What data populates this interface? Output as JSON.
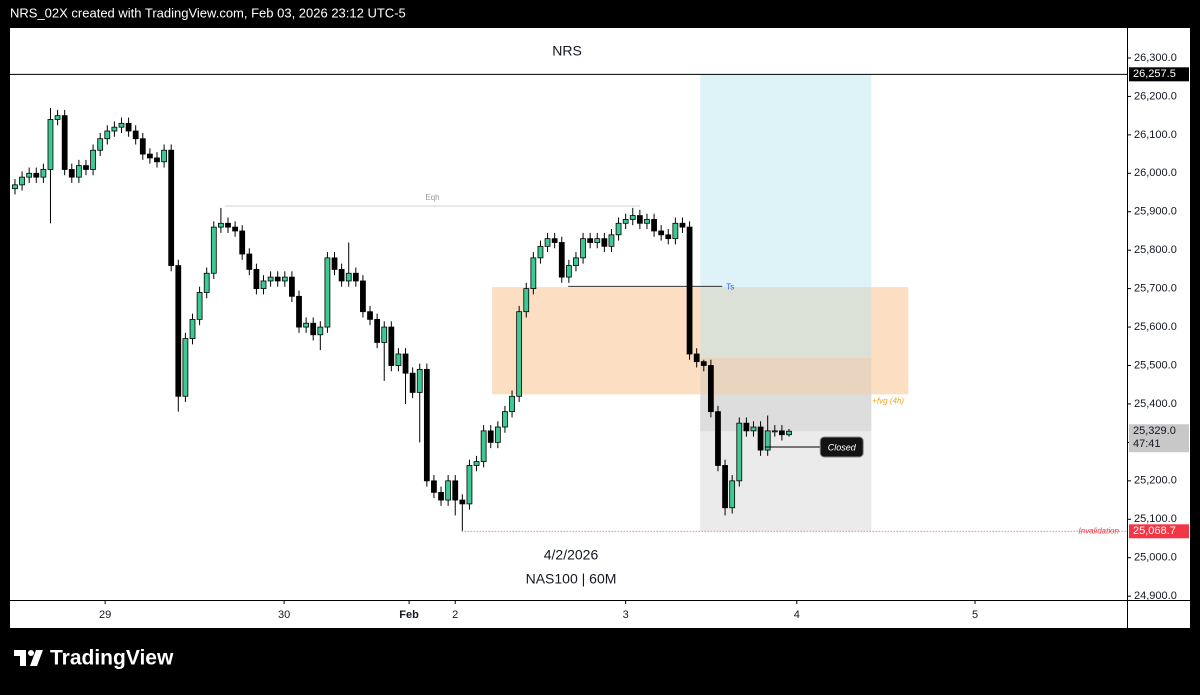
{
  "header": "NRS_02X created with TradingView.com, Feb 03, 2026 23:12 UTC-5",
  "footer": {
    "brand": "TradingView"
  },
  "chart_data": {
    "type": "candlestick",
    "title": "NRS",
    "subtitle": [
      "4/2/2026",
      "NAS100 | 60M"
    ],
    "up_color": "#3dc994",
    "down_color": "#000000",
    "grid": false,
    "xlim": [
      -0.7,
      156.6
    ],
    "ylim": [
      24890,
      26378
    ],
    "xticks": [
      {
        "value": 12.7,
        "label": "29"
      },
      {
        "value": 37.9,
        "label": "30"
      },
      {
        "value": 55.5,
        "label": "Feb"
      },
      {
        "value": 62,
        "label": "2"
      },
      {
        "value": 86,
        "label": "3"
      },
      {
        "value": 110.1,
        "label": "4"
      },
      {
        "value": 135.2,
        "label": "5"
      }
    ],
    "yticks": [
      {
        "value": 24900,
        "label": "24,900.0"
      },
      {
        "value": 25000,
        "label": "25,000.0"
      },
      {
        "value": 25100,
        "label": "25,100.0"
      },
      {
        "value": 25200,
        "label": "25,200.0"
      },
      {
        "value": 25300,
        "label": "25,300.0"
      },
      {
        "value": 25400,
        "label": "25,400.0"
      },
      {
        "value": 25500,
        "label": "25,500.0"
      },
      {
        "value": 25600,
        "label": "25,600.0"
      },
      {
        "value": 25700,
        "label": "25,700.0"
      },
      {
        "value": 25800,
        "label": "25,800.0"
      },
      {
        "value": 25900,
        "label": "25,900.0"
      },
      {
        "value": 26000,
        "label": "26,000.0"
      },
      {
        "value": 26100,
        "label": "26,100.0"
      },
      {
        "value": 26200,
        "label": "26,200.0"
      },
      {
        "value": 26300,
        "label": "26,300.0"
      }
    ],
    "open": [
      25960,
      25970,
      25990,
      26000,
      25990,
      26010,
      26140,
      26150,
      26010,
      25990,
      26020,
      26010,
      26060,
      26090,
      26110,
      26120,
      26130,
      26110,
      26090,
      26050,
      26040,
      26030,
      26060,
      25760,
      25420,
      25570,
      25620,
      25690,
      25740,
      25860,
      25870,
      25860,
      25850,
      25790,
      25750,
      25700,
      25720,
      25730,
      25720,
      25730,
      25680,
      25600,
      25610,
      25580,
      25600,
      25780,
      25750,
      25720,
      25740,
      25720,
      25640,
      25620,
      25560,
      25600,
      25500,
      25530,
      25480,
      25430,
      25490,
      25200,
      25170,
      25150,
      25200,
      25150,
      25140,
      25240,
      25250,
      25330,
      25300,
      25340,
      25380,
      25420,
      25640,
      25700,
      25780,
      25810,
      25830,
      25820,
      25730,
      25760,
      25780,
      25830,
      25820,
      25830,
      25810,
      25840,
      25870,
      25880,
      25890,
      25870,
      25880,
      25850,
      25840,
      25830,
      25870,
      25860,
      25530,
      25510,
      25500,
      25380,
      25240,
      25130,
      25200,
      25350,
      25330,
      25340,
      25280,
      25330,
      25330,
      25320
    ],
    "high": [
      25985,
      26005,
      26015,
      26015,
      26025,
      26170,
      26165,
      26165,
      26025,
      26035,
      26035,
      26075,
      26105,
      26125,
      26135,
      26145,
      26145,
      26125,
      26105,
      26065,
      26055,
      26075,
      26075,
      25775,
      25585,
      25635,
      25705,
      25755,
      25875,
      25910,
      25885,
      25875,
      25865,
      25805,
      25765,
      25735,
      25745,
      25745,
      25745,
      25745,
      25695,
      25625,
      25625,
      25615,
      25795,
      25795,
      25765,
      25820,
      25755,
      25735,
      25655,
      25635,
      25615,
      25615,
      25545,
      25545,
      25495,
      25505,
      25505,
      25215,
      25185,
      25215,
      25215,
      25165,
      25255,
      25265,
      25345,
      25345,
      25355,
      25395,
      25435,
      25655,
      25715,
      25795,
      25825,
      25845,
      25845,
      25835,
      25775,
      25795,
      25845,
      25845,
      25845,
      25845,
      25855,
      25885,
      25895,
      25910,
      25905,
      25895,
      25895,
      25865,
      25855,
      25885,
      25885,
      25875,
      25545,
      25515,
      25515,
      25395,
      25255,
      25215,
      25365,
      25365,
      25355,
      25355,
      25370,
      25345,
      25345,
      25335
    ],
    "low": [
      25945,
      25955,
      25975,
      25975,
      25975,
      25870,
      26125,
      25995,
      25975,
      25975,
      25995,
      25995,
      26045,
      26075,
      26095,
      26105,
      26095,
      26075,
      26035,
      26025,
      26015,
      26015,
      25745,
      25380,
      25405,
      25555,
      25605,
      25675,
      25725,
      25845,
      25845,
      25835,
      25775,
      25735,
      25685,
      25685,
      25705,
      25705,
      25705,
      25665,
      25585,
      25585,
      25565,
      25540,
      25585,
      25735,
      25705,
      25705,
      25705,
      25625,
      25605,
      25545,
      25460,
      25485,
      25485,
      25400,
      25415,
      25300,
      25185,
      25155,
      25135,
      25135,
      25110,
      25070,
      25125,
      25225,
      25235,
      25285,
      25285,
      25325,
      25365,
      25405,
      25625,
      25685,
      25765,
      25795,
      25805,
      25715,
      25715,
      25745,
      25765,
      25805,
      25805,
      25795,
      25795,
      25825,
      25855,
      25865,
      25855,
      25855,
      25835,
      25825,
      25815,
      25815,
      25845,
      25515,
      25495,
      25485,
      25365,
      25225,
      25110,
      25115,
      25185,
      25315,
      25315,
      25265,
      25265,
      25315,
      25305,
      25315
    ],
    "close": [
      25970,
      25990,
      26000,
      25990,
      26010,
      26140,
      26150,
      26010,
      25990,
      26020,
      26010,
      26060,
      26090,
      26110,
      26120,
      26130,
      26110,
      26090,
      26050,
      26040,
      26030,
      26060,
      25760,
      25420,
      25570,
      25620,
      25690,
      25740,
      25860,
      25870,
      25860,
      25850,
      25790,
      25750,
      25700,
      25720,
      25730,
      25720,
      25730,
      25680,
      25600,
      25610,
      25580,
      25600,
      25780,
      25750,
      25720,
      25740,
      25720,
      25640,
      25620,
      25560,
      25600,
      25500,
      25530,
      25480,
      25430,
      25490,
      25200,
      25170,
      25150,
      25200,
      25150,
      25140,
      25240,
      25250,
      25330,
      25300,
      25340,
      25380,
      25420,
      25640,
      25700,
      25780,
      25810,
      25830,
      25820,
      25730,
      25760,
      25780,
      25830,
      25820,
      25830,
      25810,
      25840,
      25870,
      25880,
      25890,
      25870,
      25880,
      25850,
      25840,
      25830,
      25870,
      25860,
      25530,
      25510,
      25500,
      25380,
      25240,
      25130,
      25200,
      25350,
      25330,
      25340,
      25280,
      25330,
      25330,
      25320,
      25329
    ],
    "price_labels": [
      {
        "value": 26257.5,
        "label": "26,257.5",
        "color": "#000000"
      },
      {
        "value": 25329,
        "label": "25,329.0",
        "countdown": "47:41",
        "color": "#c8c8c8"
      },
      {
        "value": 25068.7,
        "label": "25,068.7",
        "color": "#f23645"
      }
    ],
    "position": {
      "x": [
        96.5,
        120.6
      ],
      "target": 26257.5,
      "entry": 25520,
      "stop": 25068.7,
      "exit_band": [
        25425,
        25329
      ]
    },
    "fvg": {
      "x": [
        67.2,
        125.8
      ],
      "top": 25704,
      "bottom": 25425,
      "label": "+fvg (4h)"
    },
    "eqh": {
      "x": [
        29.6,
        88
      ],
      "price": 25915,
      "label": "Eqh"
    },
    "ts": {
      "x": [
        77.9,
        99.6
      ],
      "price": 25706,
      "label": "Ts"
    },
    "invalidation": {
      "x": 62.9,
      "price": 25068.7,
      "label": "Invalidation"
    },
    "closed": {
      "x": [
        105.6,
        113.4
      ],
      "price": 25288,
      "label": "Closed"
    }
  }
}
